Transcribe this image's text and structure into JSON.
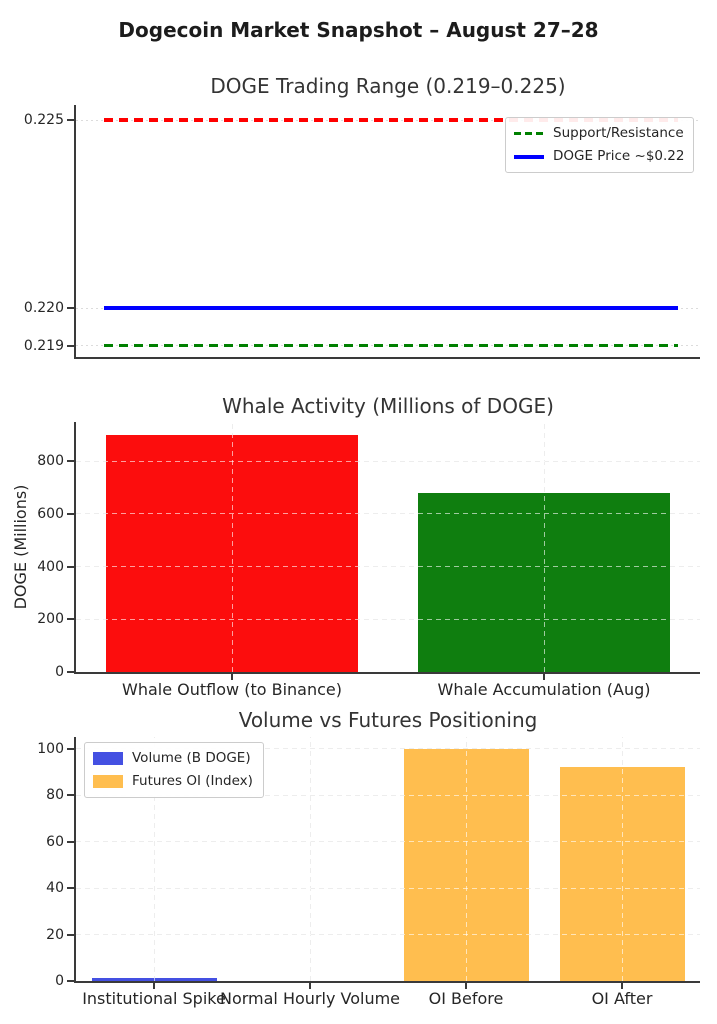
{
  "figure": {
    "title": "Dogecoin Market Snapshot – August 27–28"
  },
  "chart_data": [
    {
      "type": "line",
      "title": "DOGE Trading Range (0.219–0.225)",
      "xlabel": "",
      "ylabel": "",
      "ylim": [
        0.2187,
        0.2254
      ],
      "yticks": [
        0.225,
        0.22,
        0.219
      ],
      "ytick_labels": [
        "0.225",
        "0.220",
        "0.219"
      ],
      "grid": "horizontal dotted",
      "legend_position": "upper-right",
      "series": [
        {
          "name": "Resistance line",
          "value": 0.225,
          "color": "#ff0000",
          "style": "dashed"
        },
        {
          "name": "DOGE Price ~$0.22",
          "value": 0.22,
          "color": "#0000ff",
          "style": "solid"
        },
        {
          "name": "Support line",
          "value": 0.219,
          "color": "#008000",
          "style": "dashed"
        }
      ],
      "legend": [
        {
          "label": "Support/Resistance",
          "color": "#008000",
          "style": "dashed"
        },
        {
          "label": "DOGE Price ~$0.22",
          "color": "#0000ff",
          "style": "solid"
        }
      ]
    },
    {
      "type": "bar",
      "title": "Whale Activity (Millions of DOGE)",
      "xlabel": "",
      "ylabel": "DOGE (Millions)",
      "categories": [
        "Whale Outflow (to Binance)",
        "Whale Accumulation (Aug)"
      ],
      "values": [
        900,
        680
      ],
      "bar_colors": [
        "#fc0d0d",
        "#0f7e0f"
      ],
      "ylim": [
        0,
        948
      ],
      "yticks": [
        0,
        200,
        400,
        600,
        800
      ],
      "grid": "dashed horizontal and vertical"
    },
    {
      "type": "bar",
      "title": "Volume vs Futures Positioning",
      "xlabel": "",
      "ylabel": "",
      "categories": [
        "Institutional Spike",
        "Normal Hourly Volume",
        "OI Before",
        "OI After"
      ],
      "values": [
        1.4,
        0.05,
        100,
        92
      ],
      "bar_colors": [
        "#4450e2",
        "#4450e2",
        "#ffbe4f",
        "#ffbe4f"
      ],
      "ylim": [
        0,
        105
      ],
      "yticks": [
        0,
        20,
        40,
        60,
        80,
        100
      ],
      "grid": "dashed horizontal and vertical",
      "legend_position": "upper-left",
      "legend": [
        {
          "label": "Volume (B DOGE)",
          "color": "#4450e2",
          "style": "patch"
        },
        {
          "label": "Futures OI (Index)",
          "color": "#ffbe4f",
          "style": "patch"
        }
      ]
    }
  ]
}
